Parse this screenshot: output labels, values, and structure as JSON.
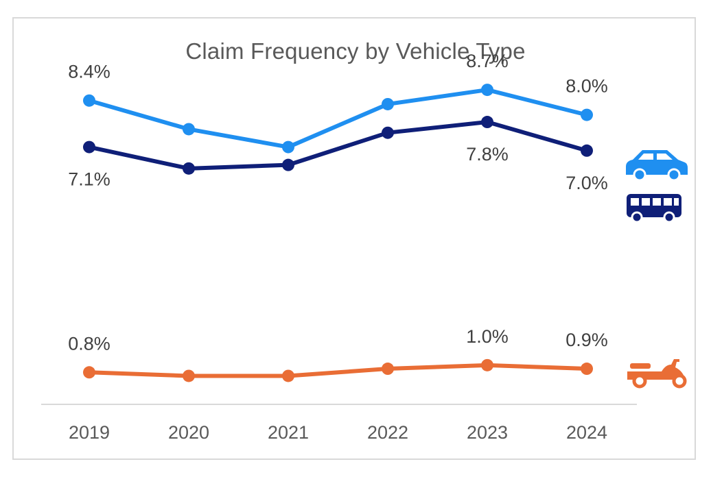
{
  "chart_data": {
    "type": "line",
    "title": "Claim Frequency by Vehicle Type",
    "xlabel": "",
    "ylabel": "",
    "x": [
      "2019",
      "2020",
      "2021",
      "2022",
      "2023",
      "2024"
    ],
    "ylim": [
      0,
      9.2
    ],
    "grid": false,
    "legend": "icons-right",
    "series": [
      {
        "key": "car",
        "icon": "car-icon",
        "color": "#1f8ff0",
        "values": [
          8.4,
          7.6,
          7.1,
          8.3,
          8.7,
          8.0
        ],
        "labels": [
          {
            "index": 0,
            "text": "8.4%",
            "pos": "above"
          },
          {
            "index": 4,
            "text": "8.7%",
            "pos": "above"
          },
          {
            "index": 5,
            "text": "8.0%",
            "pos": "above"
          }
        ]
      },
      {
        "key": "bus",
        "icon": "bus-icon",
        "color": "#0f1f78",
        "values": [
          7.1,
          6.5,
          6.6,
          7.5,
          7.8,
          7.0
        ],
        "labels": [
          {
            "index": 0,
            "text": "7.1%",
            "pos": "below"
          },
          {
            "index": 4,
            "text": "7.8%",
            "pos": "below"
          },
          {
            "index": 5,
            "text": "7.0%",
            "pos": "below"
          }
        ]
      },
      {
        "key": "scooter",
        "icon": "scooter-icon",
        "color": "#e96d35",
        "values": [
          0.8,
          0.7,
          0.7,
          0.9,
          1.0,
          0.9
        ],
        "labels": [
          {
            "index": 0,
            "text": "0.8%",
            "pos": "above"
          },
          {
            "index": 4,
            "text": "1.0%",
            "pos": "above"
          },
          {
            "index": 5,
            "text": "0.9%",
            "pos": "above"
          }
        ]
      }
    ]
  }
}
